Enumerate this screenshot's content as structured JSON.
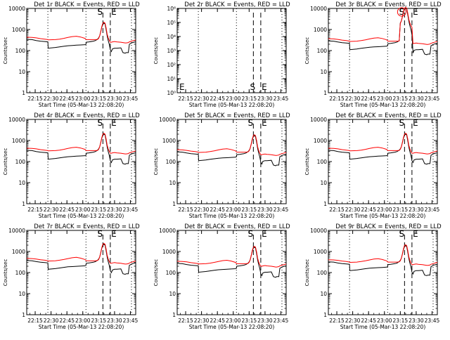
{
  "chart_data": {
    "type": "line",
    "layout": "3x3 grid of detector light curves",
    "common": {
      "xlabel": "Start Time (05-Mar-13 22:08:20)",
      "ylabel": "Counts/sec",
      "x_tick_labels": [
        "22:15",
        "22:30",
        "22:45",
        "23:00",
        "23:15",
        "23:30",
        "23:45"
      ],
      "x_ticks_minutes": [
        15,
        30,
        45,
        60,
        75,
        90,
        105
      ],
      "xlim_minutes": [
        7,
        110
      ],
      "x_units": "minutes after 22:00",
      "ylim": [
        1,
        10000
      ],
      "y_scale": "log",
      "y_tick_labels": [
        "1",
        "10",
        "100",
        "1000",
        "10000"
      ],
      "dotted_lines_minutes": [
        27,
        63,
        106
      ],
      "start_end_lines_minutes": [
        79,
        86
      ],
      "start_marker": "S",
      "end_marker": "E",
      "legend_entries": [
        {
          "name": "Events",
          "color": "#000000"
        },
        {
          "name": "LLD",
          "color": "#ff0000"
        }
      ]
    },
    "series_template": {
      "x": [
        7,
        12,
        16,
        20,
        24,
        27,
        27.3,
        34,
        38,
        42,
        46,
        50,
        54,
        58,
        62,
        63,
        63.3,
        66,
        70,
        72,
        74,
        75,
        76,
        77,
        78,
        79,
        80,
        81,
        82,
        83,
        84,
        85,
        86,
        87,
        88,
        90,
        92,
        96,
        98,
        100,
        101,
        103,
        104,
        106,
        108,
        110
      ],
      "events": [
        340,
        330,
        300,
        280,
        270,
        260,
        130,
        140,
        150,
        160,
        170,
        175,
        180,
        185,
        190,
        200,
        250,
        260,
        280,
        300,
        350,
        400,
        500,
        800,
        1300,
        1800,
        2000,
        1800,
        1000,
        500,
        300,
        200,
        110,
        90,
        120,
        130,
        130,
        135,
        80,
        75,
        80,
        80,
        200,
        230,
        250,
        260
      ],
      "lld": [
        430,
        420,
        400,
        370,
        350,
        330,
        320,
        330,
        350,
        380,
        420,
        460,
        480,
        440,
        380,
        340,
        330,
        330,
        330,
        330,
        340,
        380,
        500,
        800,
        1400,
        2000,
        2200,
        2000,
        1200,
        600,
        400,
        300,
        250,
        250,
        260,
        270,
        260,
        250,
        240,
        230,
        230,
        240,
        260,
        280,
        300,
        320
      ]
    },
    "panels": [
      {
        "title": "Det 1r BLACK = Events, RED = LLD",
        "ylim": [
          1,
          10000
        ],
        "y_tick_labels": [
          "1",
          "10",
          "100",
          "1000",
          "10000"
        ],
        "has_data": true,
        "scale": 1.0
      },
      {
        "title": "Det 2r BLACK = Events, RED = LLD",
        "ylim": [
          1,
          1000000
        ],
        "y_tick_labels": [
          "10⁰",
          "10¹",
          "10²",
          "10³",
          "10⁴",
          "10⁵",
          "10⁶"
        ],
        "has_data": false,
        "scale": 1.0
      },
      {
        "title": "Det 3r BLACK = Events, RED = LLD",
        "ylim": [
          1,
          10000
        ],
        "y_tick_labels": [
          "1",
          "10",
          "100",
          "1000",
          "10000"
        ],
        "has_data": true,
        "scale": 0.85,
        "spike_scale": 6,
        "start_marker_circled": true
      },
      {
        "title": "Det 4r BLACK = Events, RED = LLD",
        "ylim": [
          1,
          10000
        ],
        "y_tick_labels": [
          "1",
          "10",
          "100",
          "1000",
          "10000"
        ],
        "has_data": true,
        "scale": 1.0
      },
      {
        "title": "Det 5r BLACK = Events, RED = LLD",
        "ylim": [
          1,
          10000
        ],
        "y_tick_labels": [
          "1",
          "10",
          "100",
          "1000",
          "10000"
        ],
        "has_data": true,
        "scale": 0.85
      },
      {
        "title": "Det 6r BLACK = Events, RED = LLD",
        "ylim": [
          1,
          10000
        ],
        "y_tick_labels": [
          "1",
          "10",
          "100",
          "1000",
          "10000"
        ],
        "has_data": true,
        "scale": 1.0
      },
      {
        "title": "Det 7r BLACK = Events, RED = LLD",
        "ylim": [
          1,
          10000
        ],
        "y_tick_labels": [
          "1",
          "10",
          "100",
          "1000",
          "10000"
        ],
        "has_data": true,
        "scale": 1.1
      },
      {
        "title": "Det 8r BLACK = Events, RED = LLD",
        "ylim": [
          1,
          10000
        ],
        "y_tick_labels": [
          "1",
          "10",
          "100",
          "1000",
          "10000"
        ],
        "has_data": true,
        "scale": 0.8
      },
      {
        "title": "Det 9r BLACK = Events, RED = LLD",
        "ylim": [
          1,
          10000
        ],
        "y_tick_labels": [
          "1",
          "10",
          "100",
          "1000",
          "10000"
        ],
        "has_data": true,
        "scale": 0.95
      }
    ]
  }
}
